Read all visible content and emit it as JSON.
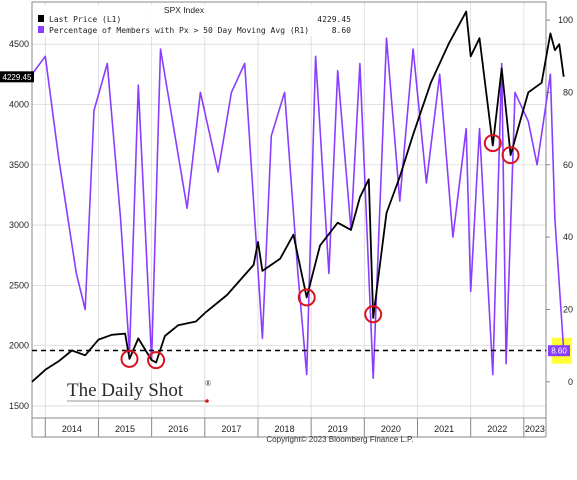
{
  "chart_data": {
    "type": "line",
    "title": "SPX Index",
    "colors": {
      "price": "#000000",
      "pct": "#8b3dff",
      "highlight": "#ffff33",
      "circle": "#d9141e"
    },
    "x_axis": {
      "ticks": [
        "2014",
        "2015",
        "2016",
        "2017",
        "2018",
        "2019",
        "2020",
        "2021",
        "2022",
        "2023"
      ],
      "range": [
        "2013-10",
        "2023-06"
      ]
    },
    "y_left": {
      "ticks": [
        "1500",
        "2000",
        "2500",
        "3000",
        "3500",
        "4000",
        "4500"
      ],
      "range": [
        1400,
        4850
      ]
    },
    "y_right": {
      "ticks": [
        "0",
        "20",
        "40",
        "60",
        "80",
        "100"
      ],
      "range": [
        -10,
        105
      ]
    },
    "series": [
      {
        "name": "Last Price",
        "axis": "L1",
        "legend_value": "4229.45",
        "last_value_label": "4229.45",
        "points": [
          [
            "2013-10",
            1700
          ],
          [
            "2014-01",
            1800
          ],
          [
            "2014-04",
            1870
          ],
          [
            "2014-07",
            1960
          ],
          [
            "2014-10",
            1920
          ],
          [
            "2015-01",
            2050
          ],
          [
            "2015-04",
            2090
          ],
          [
            "2015-07",
            2100
          ],
          [
            "2015-08",
            1890
          ],
          [
            "2015-10",
            2060
          ],
          [
            "2016-01",
            1880
          ],
          [
            "2016-02",
            1860
          ],
          [
            "2016-04",
            2080
          ],
          [
            "2016-07",
            2170
          ],
          [
            "2016-11",
            2200
          ],
          [
            "2017-01",
            2270
          ],
          [
            "2017-06",
            2420
          ],
          [
            "2017-12",
            2670
          ],
          [
            "2018-01",
            2860
          ],
          [
            "2018-02",
            2620
          ],
          [
            "2018-06",
            2720
          ],
          [
            "2018-09",
            2920
          ],
          [
            "2018-12",
            2400
          ],
          [
            "2019-03",
            2830
          ],
          [
            "2019-07",
            3020
          ],
          [
            "2019-10",
            2960
          ],
          [
            "2019-12",
            3230
          ],
          [
            "2020-02",
            3380
          ],
          [
            "2020-03",
            2230
          ],
          [
            "2020-06",
            3100
          ],
          [
            "2020-09",
            3400
          ],
          [
            "2020-12",
            3750
          ],
          [
            "2021-04",
            4180
          ],
          [
            "2021-08",
            4500
          ],
          [
            "2021-12",
            4770
          ],
          [
            "2022-01",
            4400
          ],
          [
            "2022-03",
            4550
          ],
          [
            "2022-06",
            3660
          ],
          [
            "2022-08",
            4300
          ],
          [
            "2022-10",
            3580
          ],
          [
            "2022-12",
            3840
          ],
          [
            "2023-02",
            4100
          ],
          [
            "2023-05",
            4180
          ],
          [
            "2023-07",
            4590
          ],
          [
            "2023-08",
            4450
          ],
          [
            "2023-09",
            4500
          ],
          [
            "2023-10",
            4229.45
          ]
        ]
      },
      {
        "name": "Percentage of Members with Px > 50 Day Moving Avg",
        "axis": "R1",
        "legend_value": "8.60",
        "last_value_label": "8.60",
        "points": [
          [
            "2013-10",
            85
          ],
          [
            "2014-01",
            90
          ],
          [
            "2014-04",
            62
          ],
          [
            "2014-08",
            30
          ],
          [
            "2014-10",
            20
          ],
          [
            "2014-12",
            75
          ],
          [
            "2015-03",
            88
          ],
          [
            "2015-06",
            45
          ],
          [
            "2015-08",
            8
          ],
          [
            "2015-10",
            82
          ],
          [
            "2016-01",
            6
          ],
          [
            "2016-03",
            92
          ],
          [
            "2016-06",
            70
          ],
          [
            "2016-09",
            48
          ],
          [
            "2016-12",
            80
          ],
          [
            "2017-04",
            58
          ],
          [
            "2017-07",
            80
          ],
          [
            "2017-10",
            88
          ],
          [
            "2018-02",
            12
          ],
          [
            "2018-04",
            68
          ],
          [
            "2018-07",
            80
          ],
          [
            "2018-10",
            30
          ],
          [
            "2018-12",
            2
          ],
          [
            "2019-02",
            90
          ],
          [
            "2019-05",
            30
          ],
          [
            "2019-07",
            86
          ],
          [
            "2019-10",
            42
          ],
          [
            "2019-12",
            88
          ],
          [
            "2020-03",
            1
          ],
          [
            "2020-06",
            95
          ],
          [
            "2020-09",
            50
          ],
          [
            "2020-12",
            92
          ],
          [
            "2021-03",
            55
          ],
          [
            "2021-06",
            85
          ],
          [
            "2021-09",
            40
          ],
          [
            "2021-12",
            70
          ],
          [
            "2022-01",
            25
          ],
          [
            "2022-03",
            70
          ],
          [
            "2022-06",
            2
          ],
          [
            "2022-08",
            88
          ],
          [
            "2022-09",
            5
          ],
          [
            "2022-11",
            80
          ],
          [
            "2023-02",
            72
          ],
          [
            "2023-04",
            60
          ],
          [
            "2023-07",
            85
          ],
          [
            "2023-08",
            45
          ],
          [
            "2023-10",
            8.6
          ]
        ]
      }
    ],
    "reference_line": {
      "axis": "L1",
      "value": 1960,
      "style": "dashed"
    },
    "circled_points": [
      {
        "x": "2015-08",
        "axis": "L1",
        "value": 1890
      },
      {
        "x": "2016-02",
        "axis": "L1",
        "value": 1880
      },
      {
        "x": "2018-12",
        "axis": "L1",
        "value": 2400
      },
      {
        "x": "2020-03",
        "axis": "L1",
        "value": 2260
      },
      {
        "x": "2022-06",
        "axis": "L1",
        "value": 3680
      },
      {
        "x": "2022-10",
        "axis": "L1",
        "value": 3580
      }
    ],
    "highlight_box": {
      "x": "2023-10",
      "axis": "R1",
      "value": 8.6
    },
    "grid": true,
    "legend_position": "top-left"
  },
  "footer": {
    "brand": "The Daily Shot",
    "registered": "®",
    "copyright": "Copyright© 2023 Bloomberg Finance L.P."
  }
}
